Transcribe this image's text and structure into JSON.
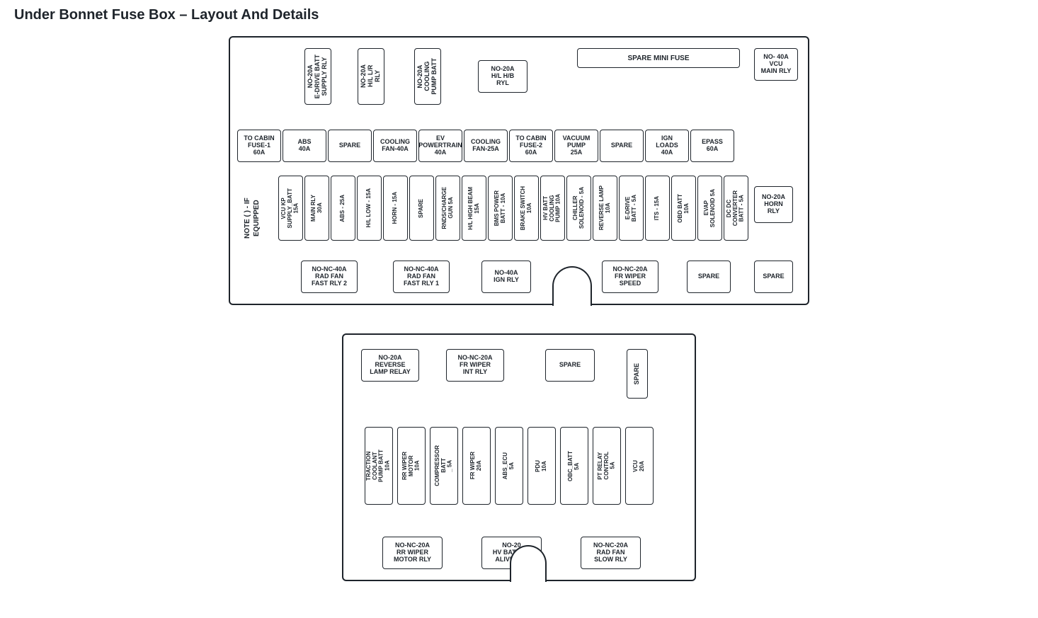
{
  "title": "Under Bonnet Fuse Box – Layout And Details",
  "colors": {
    "line": "#1e242b",
    "bg": "#ffffff"
  },
  "upper": {
    "note": "NOTE\n( ) - IF EQUIPPED",
    "topRow": [
      "NO-20A\nE-DRIVE BATT\nSUPPLY RLY",
      "NO-20A\nH/L L/R\nRLY",
      "NO-20A\nCOOLING\nPUMP BATT"
    ],
    "topRight1": "NO-20A\nH/L H/B\nRYL",
    "spareMini": "SPARE MINI FUSE",
    "topRight2": "NO- 40A\nVCU\nMAIN RLY",
    "row2": [
      "TO CABIN\nFUSE-1\n60A",
      "ABS\n40A",
      "SPARE",
      "COOLING\nFAN-40A",
      "EV\nPOWERTRAIN\n40A",
      "COOLING\nFAN-25A",
      "TO CABIN\nFUSE-2\n60A",
      "VACUUM\nPUMP\n25A",
      "SPARE",
      "IGN\nLOADS\n40A",
      "EPASS\n60A"
    ],
    "row3": [
      "VCU KP\nSUPPLY_BATT\n15A",
      "MAIN RLY\n30A",
      "ABS - 25A",
      "H/L LOW - 15A",
      "HORN - 15A",
      "SPARE",
      "RNDS/CHARGE\nGUN 5A",
      "H/L HIGH BEAM\n15A",
      "BMS POWER\nBATT - 10A",
      "BRAKE SWITCH\n10A",
      "HV BATT\nCOOLING\nPUMP 10A",
      "CHILLER\nSOLENOID - 5A",
      "REVERSE LAMP\n10A",
      "E-DRIVE\nBATT - 5A",
      "ITS - 15A",
      "OBD BATT\n10A",
      "EVAP\nSOLENOID 5A",
      "DC DC\nCONVERTER\nBATT - 5A"
    ],
    "hornRly": "NO-20A\nHORN\nRLY",
    "row4": [
      "NO-NC-40A\nRAD FAN\nFAST RLY 2",
      "NO-NC-40A\nRAD FAN\nFAST RLY 1",
      "NO-40A\nIGN RLY",
      "NO-NC-20A\nFR WIPER\nSPEED",
      "SPARE",
      "SPARE"
    ]
  },
  "lower": {
    "top": [
      "NO-20A\nREVERSE\nLAMP RELAY",
      "NO-NC-20A\nFR WIPER\nINT RLY",
      "SPARE"
    ],
    "topSpare": "SPARE",
    "mid": [
      "TRACTION\nCOOLANT\nPUMP BATT\n10A",
      "RR WIPER\nMOTOR\n10A",
      "COMPRESSOR\nBATT\n_ 5A",
      "FR WIPER\n20A",
      "ABS_ECU\n5A",
      "PDU\n10A",
      "OBC_BATT\n5A",
      "PT RELAY\nCONTROL\n5A",
      "VCU\n20A"
    ],
    "bot": [
      "NO-NC-20A\nRR WIPER\nMOTOR RLY",
      "NO-20\nHV BATT KP\nALIVE RLY",
      "NO-NC-20A\nRAD FAN\nSLOW RLY"
    ]
  }
}
